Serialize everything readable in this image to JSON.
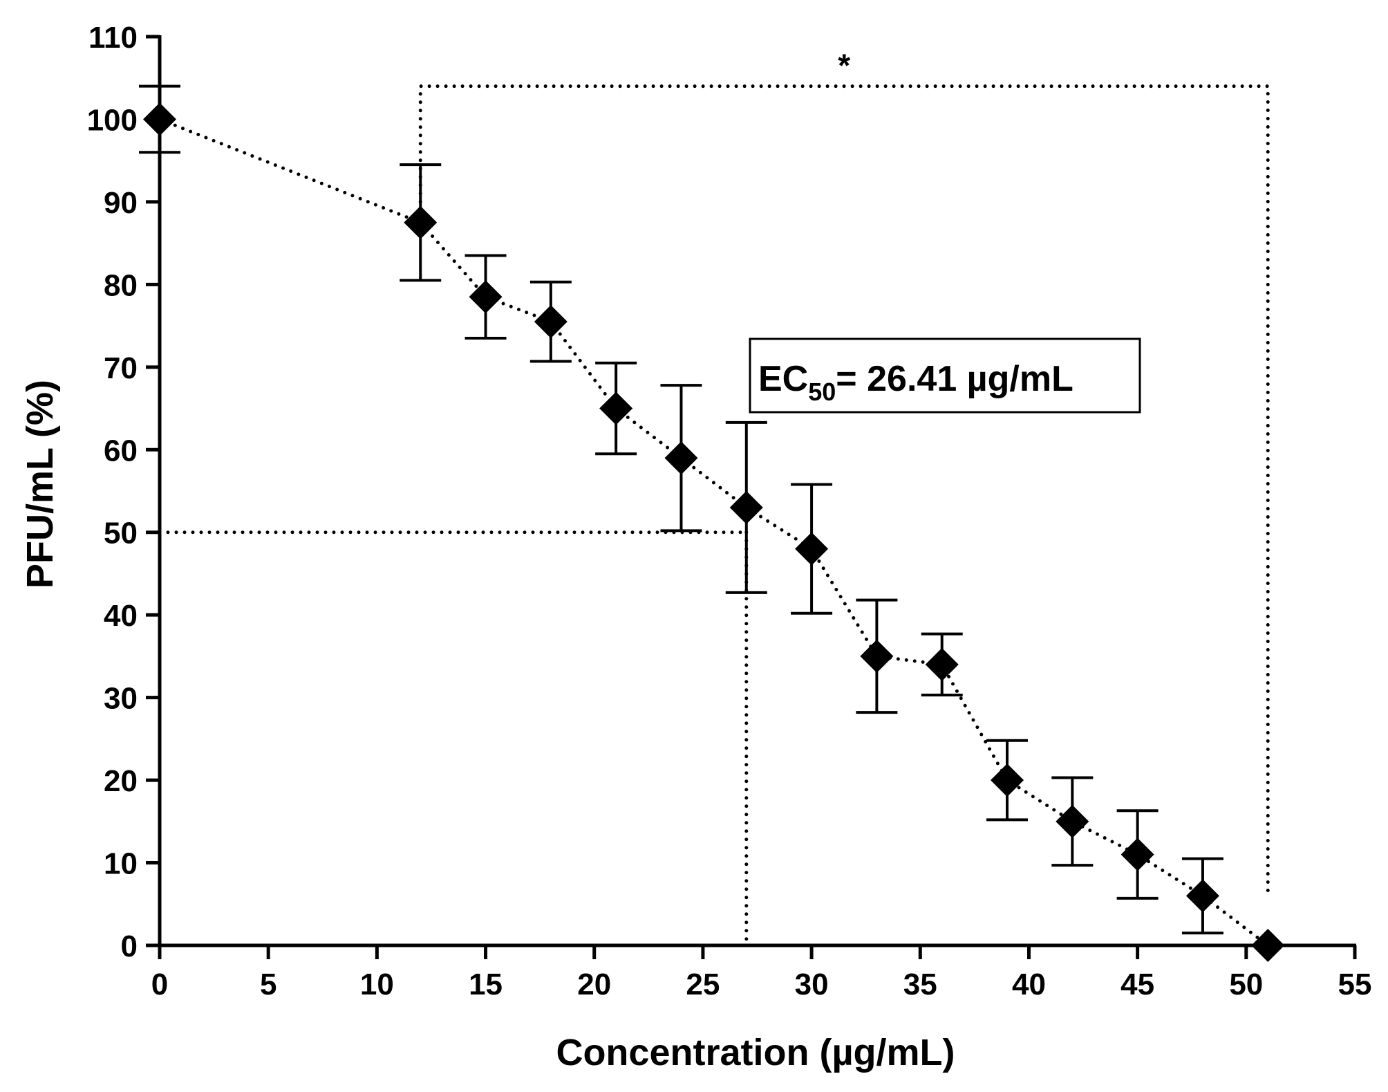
{
  "chart_data": {
    "type": "scatter",
    "title": "",
    "xlabel": "Concentration (µg/mL)",
    "ylabel": "PFU/mL (%)",
    "xlim": [
      0,
      55
    ],
    "ylim": [
      0,
      110
    ],
    "x_ticks": [
      0,
      5,
      10,
      15,
      20,
      25,
      30,
      35,
      40,
      45,
      50,
      55
    ],
    "y_ticks": [
      0,
      10,
      20,
      30,
      40,
      50,
      60,
      70,
      80,
      90,
      100,
      110
    ],
    "grid": false,
    "series": [
      {
        "name": "PFU/mL (%)",
        "marker": "diamond",
        "color": "#000000",
        "x": [
          0,
          12,
          15,
          18,
          21,
          24,
          27,
          30,
          33,
          36,
          39,
          42,
          45,
          48,
          51
        ],
        "y": [
          100,
          87.5,
          78.5,
          75.5,
          65,
          59,
          53,
          48,
          35,
          34,
          20,
          15,
          11,
          6,
          0
        ],
        "error": [
          4,
          7,
          5,
          4.8,
          5.5,
          8.8,
          10.3,
          7.8,
          6.8,
          3.7,
          4.8,
          5.3,
          5.3,
          4.5,
          0
        ]
      }
    ],
    "trend_line": {
      "style": "dotted",
      "x": [
        0,
        12,
        15,
        18,
        21,
        24,
        27,
        30,
        33,
        36,
        39,
        42,
        45,
        48,
        51
      ],
      "y": [
        100,
        87.5,
        78.5,
        75.5,
        65,
        59,
        53,
        48,
        35,
        34,
        20,
        15,
        11,
        6,
        0
      ]
    },
    "ec50_guides": {
      "y": 50,
      "x": 27
    },
    "significance_bracket": {
      "x_start": 12,
      "x_end": 51,
      "y": 104,
      "label": "*"
    },
    "annotation": {
      "prefix": "EC",
      "subscript": "50",
      "suffix": "= 26.41 µg/mL"
    }
  }
}
